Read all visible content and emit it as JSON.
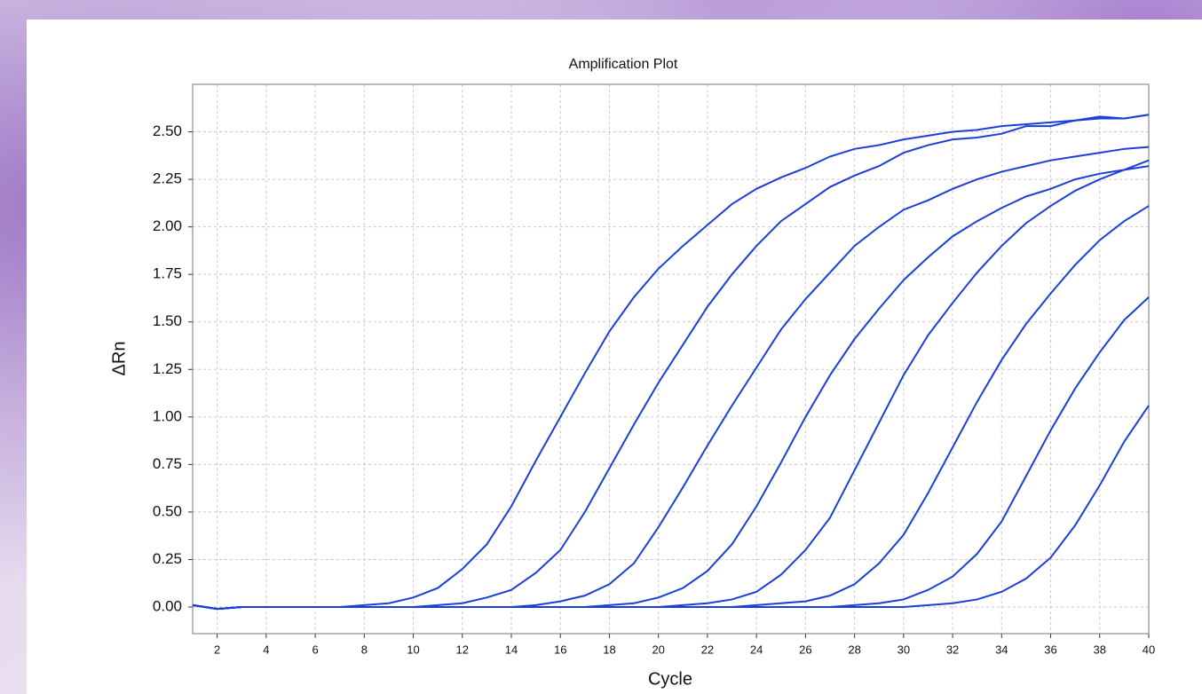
{
  "chart_data": {
    "type": "line",
    "title": "Amplification Plot",
    "x_label": "Cycle",
    "y_label": "ΔRn",
    "x": [
      1,
      2,
      3,
      4,
      5,
      6,
      7,
      8,
      9,
      10,
      11,
      12,
      13,
      14,
      15,
      16,
      17,
      18,
      19,
      20,
      21,
      22,
      23,
      24,
      25,
      26,
      27,
      28,
      29,
      30,
      31,
      32,
      33,
      34,
      35,
      36,
      37,
      38,
      39,
      40
    ],
    "xlim": [
      1,
      40
    ],
    "xticks": [
      2,
      4,
      6,
      8,
      10,
      12,
      14,
      16,
      18,
      20,
      22,
      24,
      26,
      28,
      30,
      32,
      34,
      36,
      38,
      40
    ],
    "ylim": [
      -0.14,
      2.75
    ],
    "yticks": [
      {
        "value": 0,
        "label": "0.00"
      },
      {
        "value": 0.25,
        "label": "0.25"
      },
      {
        "value": 0.5,
        "label": "0.50"
      },
      {
        "value": 0.75,
        "label": "0.75"
      },
      {
        "value": 1,
        "label": "1.00"
      },
      {
        "value": 1.25,
        "label": "1.25"
      },
      {
        "value": 1.5,
        "label": "1.50"
      },
      {
        "value": 1.75,
        "label": "1.75"
      },
      {
        "value": 2,
        "label": "2.00"
      },
      {
        "value": 2.25,
        "label": "2.25"
      },
      {
        "value": 2.5,
        "label": "2.50"
      }
    ],
    "grid": true,
    "series": [
      {
        "color": "#1c3fd8",
        "values": [
          0.01,
          -0.01,
          0,
          0,
          0,
          0,
          0,
          0.01,
          0.02,
          0.05,
          0.1,
          0.2,
          0.33,
          0.53,
          0.77,
          1.0,
          1.23,
          1.45,
          1.63,
          1.78,
          1.9,
          2.01,
          2.12,
          2.2,
          2.26,
          2.31,
          2.37,
          2.41,
          2.43,
          2.46,
          2.48,
          2.5,
          2.51,
          2.53,
          2.54,
          2.55,
          2.56,
          2.57,
          2.57,
          2.59
        ]
      },
      {
        "color": "#1c3fd8",
        "values": [
          0.01,
          -0.01,
          0,
          0,
          0,
          0,
          0,
          0,
          0,
          0,
          0.01,
          0.02,
          0.05,
          0.09,
          0.18,
          0.3,
          0.5,
          0.73,
          0.96,
          1.18,
          1.38,
          1.58,
          1.75,
          1.9,
          2.03,
          2.12,
          2.21,
          2.27,
          2.32,
          2.39,
          2.43,
          2.46,
          2.47,
          2.49,
          2.53,
          2.53,
          2.56,
          2.58,
          2.57,
          2.59
        ]
      },
      {
        "color": "#1c3fd8",
        "values": [
          0.01,
          -0.01,
          0,
          0,
          0,
          0,
          0,
          0,
          0,
          0,
          0,
          0,
          0,
          0,
          0.01,
          0.03,
          0.06,
          0.12,
          0.23,
          0.42,
          0.63,
          0.85,
          1.06,
          1.26,
          1.46,
          1.62,
          1.76,
          1.9,
          2.0,
          2.09,
          2.14,
          2.2,
          2.25,
          2.29,
          2.32,
          2.35,
          2.37,
          2.39,
          2.41,
          2.42
        ]
      },
      {
        "color": "#1c3fd8",
        "values": [
          0.01,
          -0.01,
          0,
          0,
          0,
          0,
          0,
          0,
          0,
          0,
          0,
          0,
          0,
          0,
          0,
          0,
          0,
          0.01,
          0.02,
          0.05,
          0.1,
          0.19,
          0.33,
          0.53,
          0.76,
          1.0,
          1.22,
          1.41,
          1.57,
          1.72,
          1.84,
          1.95,
          2.03,
          2.1,
          2.16,
          2.2,
          2.25,
          2.28,
          2.3,
          2.32
        ]
      },
      {
        "color": "#1c3fd8",
        "values": [
          0.01,
          -0.01,
          0,
          0,
          0,
          0,
          0,
          0,
          0,
          0,
          0,
          0,
          0,
          0,
          0,
          0,
          0,
          0,
          0,
          0,
          0.01,
          0.02,
          0.04,
          0.08,
          0.17,
          0.3,
          0.47,
          0.72,
          0.97,
          1.22,
          1.43,
          1.6,
          1.76,
          1.9,
          2.02,
          2.11,
          2.19,
          2.25,
          2.3,
          2.35
        ]
      },
      {
        "color": "#1c3fd8",
        "values": [
          0.01,
          -0.01,
          0,
          0,
          0,
          0,
          0,
          0,
          0,
          0,
          0,
          0,
          0,
          0,
          0,
          0,
          0,
          0,
          0,
          0,
          0,
          0,
          0,
          0.01,
          0.02,
          0.03,
          0.06,
          0.12,
          0.23,
          0.38,
          0.6,
          0.84,
          1.08,
          1.3,
          1.49,
          1.65,
          1.8,
          1.93,
          2.03,
          2.11
        ]
      },
      {
        "color": "#1c3fd8",
        "values": [
          0.01,
          -0.01,
          0,
          0,
          0,
          0,
          0,
          0,
          0,
          0,
          0,
          0,
          0,
          0,
          0,
          0,
          0,
          0,
          0,
          0,
          0,
          0,
          0,
          0,
          0,
          0,
          0,
          0.01,
          0.02,
          0.04,
          0.09,
          0.16,
          0.28,
          0.45,
          0.69,
          0.93,
          1.15,
          1.34,
          1.51,
          1.63
        ]
      },
      {
        "color": "#1c3fd8",
        "values": [
          0.01,
          -0.01,
          0,
          0,
          0,
          0,
          0,
          0,
          0,
          0,
          0,
          0,
          0,
          0,
          0,
          0,
          0,
          0,
          0,
          0,
          0,
          0,
          0,
          0,
          0,
          0,
          0,
          0,
          0,
          0,
          0.01,
          0.02,
          0.04,
          0.08,
          0.15,
          0.26,
          0.43,
          0.64,
          0.87,
          1.06
        ]
      }
    ]
  }
}
